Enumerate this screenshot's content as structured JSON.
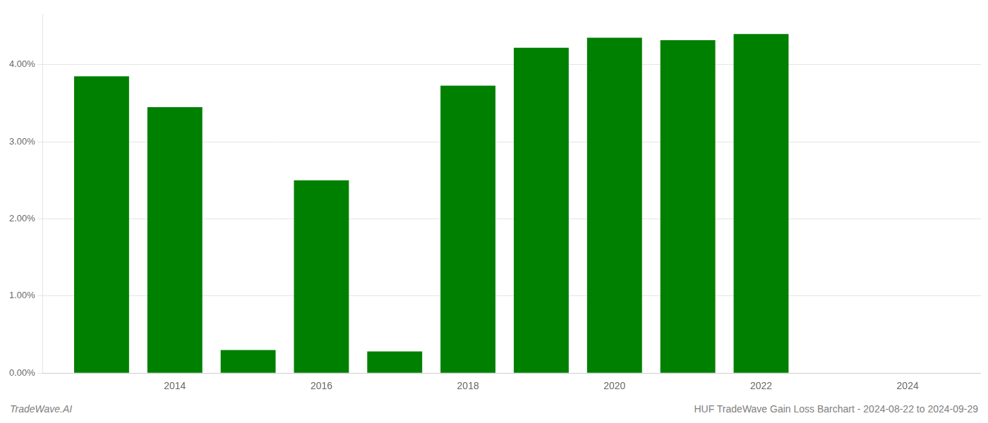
{
  "chart_data": {
    "type": "bar",
    "x": [
      2013,
      2014,
      2015,
      2016,
      2017,
      2018,
      2019,
      2020,
      2021,
      2022
    ],
    "values": [
      0.0385,
      0.0345,
      0.003,
      0.025,
      0.0028,
      0.0373,
      0.0422,
      0.0435,
      0.0432,
      0.044
    ],
    "color": "#008000",
    "xlim": [
      2012.2,
      2025.0
    ],
    "xticks": [
      2014,
      2016,
      2018,
      2020,
      2022,
      2024
    ],
    "ylim": [
      0,
      0.0465
    ],
    "yticks": [
      {
        "value": 0.0,
        "label": "0.00%"
      },
      {
        "value": 0.01,
        "label": "1.00%"
      },
      {
        "value": 0.02,
        "label": "2.00%"
      },
      {
        "value": 0.03,
        "label": "3.00%"
      },
      {
        "value": 0.04,
        "label": "4.00%"
      }
    ],
    "grid": "y",
    "annotations": [
      "TradeWave.AI",
      "HUF TradeWave Gain Loss Barchart - 2024-08-22 to 2024-09-29"
    ]
  }
}
